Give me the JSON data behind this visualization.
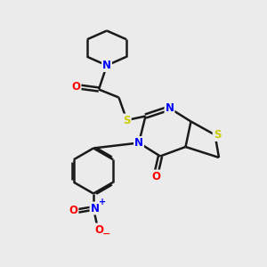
{
  "bg_color": "#ebebeb",
  "bond_color": "#1a1a1a",
  "N_color": "#0000ff",
  "S_color": "#cccc00",
  "O_color": "#ff0000",
  "line_width": 1.8,
  "xlim": [
    0,
    10
  ],
  "ylim": [
    0,
    10
  ]
}
